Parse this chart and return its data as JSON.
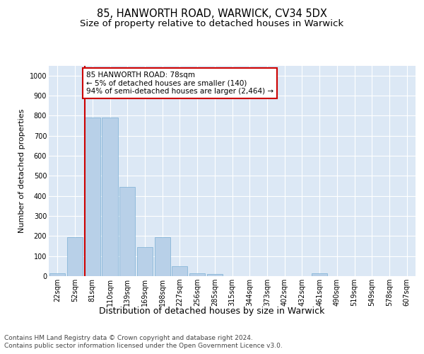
{
  "title_line1": "85, HANWORTH ROAD, WARWICK, CV34 5DX",
  "title_line2": "Size of property relative to detached houses in Warwick",
  "xlabel": "Distribution of detached houses by size in Warwick",
  "ylabel": "Number of detached properties",
  "categories": [
    "22sqm",
    "52sqm",
    "81sqm",
    "110sqm",
    "139sqm",
    "169sqm",
    "198sqm",
    "227sqm",
    "256sqm",
    "285sqm",
    "315sqm",
    "344sqm",
    "373sqm",
    "402sqm",
    "432sqm",
    "461sqm",
    "490sqm",
    "519sqm",
    "549sqm",
    "578sqm",
    "607sqm"
  ],
  "values": [
    15,
    195,
    790,
    790,
    445,
    145,
    195,
    50,
    15,
    10,
    0,
    0,
    0,
    0,
    0,
    15,
    0,
    0,
    0,
    0,
    0
  ],
  "bar_color": "#b8d0e8",
  "bar_edge_color": "#7aafd4",
  "highlight_line_color": "#cc0000",
  "annotation_text": "85 HANWORTH ROAD: 78sqm\n← 5% of detached houses are smaller (140)\n94% of semi-detached houses are larger (2,464) →",
  "annotation_box_color": "#ffffff",
  "annotation_box_edge": "#cc0000",
  "ylim": [
    0,
    1050
  ],
  "yticks": [
    0,
    100,
    200,
    300,
    400,
    500,
    600,
    700,
    800,
    900,
    1000
  ],
  "bg_color": "#dce8f5",
  "fig_bg_color": "#ffffff",
  "footer_line1": "Contains HM Land Registry data © Crown copyright and database right 2024.",
  "footer_line2": "Contains public sector information licensed under the Open Government Licence v3.0.",
  "title_fontsize": 10.5,
  "subtitle_fontsize": 9.5,
  "xlabel_fontsize": 9,
  "ylabel_fontsize": 8,
  "tick_fontsize": 7,
  "footer_fontsize": 6.5,
  "annot_fontsize": 7.5
}
